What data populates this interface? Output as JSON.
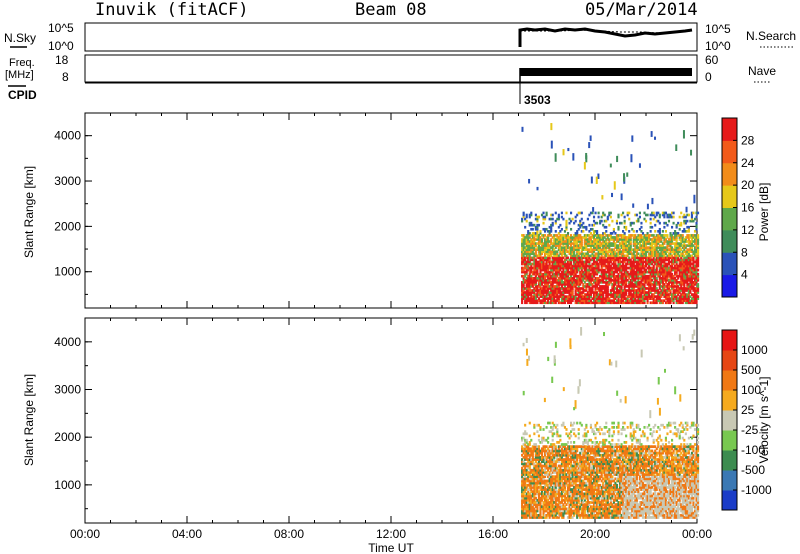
{
  "header": {
    "station": "Inuvik (fitACF)",
    "beam": "Beam 08",
    "date": "05/Mar/2014"
  },
  "panels": {
    "noise": {
      "left_label": "N.Sky",
      "left_ticks": [
        "10^5",
        "10^0"
      ],
      "right_ticks": [
        "10^5",
        "10^0"
      ],
      "right_label": "N.Search"
    },
    "freq": {
      "left_label_line1": "Freq.",
      "left_label_line2": "[MHz]",
      "left_ticks": [
        "18",
        "8"
      ],
      "right_ticks": [
        "60",
        "0"
      ],
      "right_label": "Nave"
    },
    "cpid": {
      "label": "CPID",
      "value": "3503"
    }
  },
  "colors": {
    "power_scale": [
      "#1a1ae6",
      "#2a52b8",
      "#3f8c5a",
      "#5fa84a",
      "#e6c81a",
      "#f28c1a",
      "#f25a1a",
      "#e61a1a"
    ],
    "velocity_scale": [
      "#1a3cc8",
      "#3a78b4",
      "#3c8c50",
      "#78c850",
      "#c8c8b4",
      "#f5aa1e",
      "#f07814",
      "#e64614",
      "#e61414"
    ]
  },
  "chart_data": [
    {
      "type": "heatmap",
      "title": "Power",
      "xlabel": "Time UT",
      "ylabel": "Slant Range [km]",
      "x_ticks": [
        "00:00",
        "04:00",
        "08:00",
        "12:00",
        "16:00",
        "20:00",
        "00:00"
      ],
      "y_ticks": [
        "1000",
        "2000",
        "3000",
        "4000"
      ],
      "ylim": [
        200,
        4500
      ],
      "colorbar_label": "Power [dB]",
      "colorbar_ticks": [
        "4",
        "8",
        "12",
        "16",
        "20",
        "24",
        "28"
      ],
      "data_start_hour": 17.1,
      "data_end_hour": 24.0
    },
    {
      "type": "heatmap",
      "title": "Velocity",
      "xlabel": "Time UT",
      "ylabel": "Slant Range [km]",
      "x_ticks": [
        "00:00",
        "04:00",
        "08:00",
        "12:00",
        "16:00",
        "20:00",
        "00:00"
      ],
      "y_ticks": [
        "1000",
        "2000",
        "3000",
        "4000"
      ],
      "ylim": [
        200,
        4500
      ],
      "colorbar_label": "Velocity [m s^-1]",
      "colorbar_ticks": [
        "1000",
        "500",
        "100",
        "25",
        "-25",
        "-100",
        "-500",
        "-1000"
      ],
      "data_start_hour": 17.1,
      "data_end_hour": 24.0
    }
  ]
}
